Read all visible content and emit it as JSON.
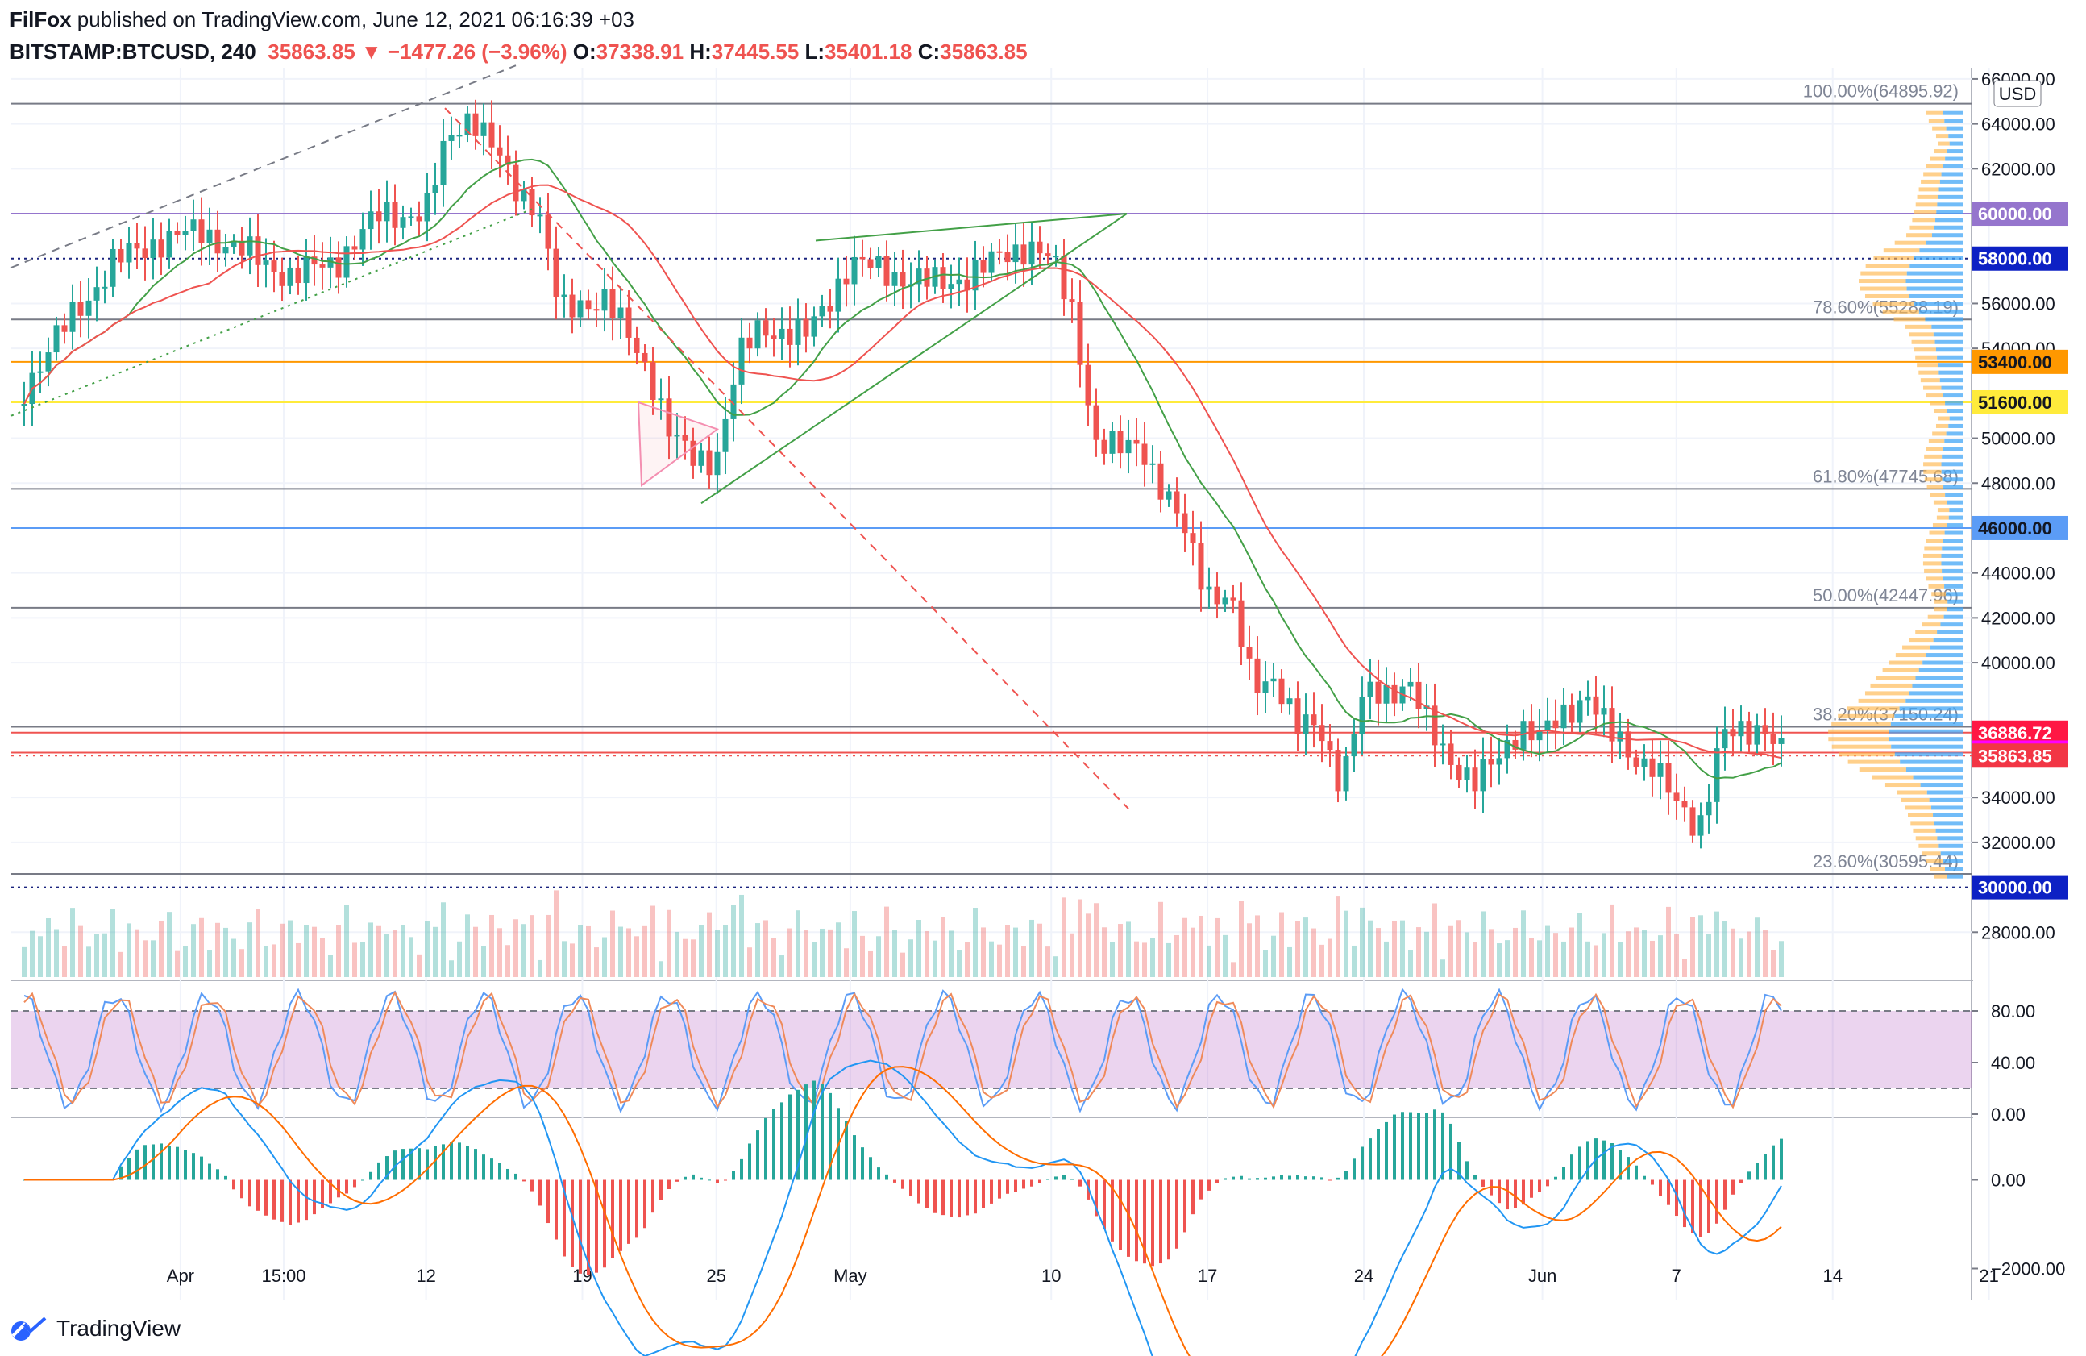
{
  "header": {
    "author": "FilFox",
    "published_text": " published on TradingView.com, June 12, 2021 06:16:39 +03",
    "symbol": "BITSTAMP:BTCUSD, 240",
    "last_price": "35863.85",
    "change": "−1477.26 (−3.96%)",
    "o_label": "O:",
    "o_value": "37338.91",
    "h_label": "H:",
    "h_value": "37445.55",
    "l_label": "L:",
    "l_value": "35401.18",
    "c_label": "C:",
    "c_value": "35863.85"
  },
  "footer": {
    "brand": "TradingView"
  },
  "colors": {
    "up": "#26a69a",
    "down": "#ef5350",
    "ema": "#ef5350",
    "sma": "#43a047",
    "purple_level": "#9575cd",
    "orange_level": "#ff9800",
    "yellow_level": "#ffeb3b",
    "blue_level": "#5b9cf6",
    "fib": "#787b86",
    "stoch_k": "#5b9cf6",
    "stoch_d": "#ef8a5a",
    "macd": "#2196f3",
    "signal": "#ff6d00"
  },
  "chart_data": [
    {
      "type": "candlestick",
      "title": "BITSTAMP:BTCUSD, 240",
      "currency": "USD",
      "x_tick_labels": [
        "Apr",
        "15:00",
        "12",
        "19",
        "25",
        "May",
        "10",
        "17",
        "24",
        "Jun",
        "7",
        "14",
        "21"
      ],
      "x_dates": [
        "2021-04-01",
        "2021-04-05 15:00",
        "2021-04-12",
        "2021-04-19",
        "2021-04-25",
        "2021-05-01",
        "2021-05-10",
        "2021-05-17",
        "2021-05-24",
        "2021-06-01",
        "2021-06-07",
        "2021-06-14",
        "2021-06-21"
      ],
      "y_tick_labels": [
        "66000.00",
        "64000.00",
        "62000.00",
        "56000.00",
        "54000.00",
        "50000.00",
        "48000.00",
        "44000.00",
        "42000.00",
        "40000.00",
        "34000.00",
        "32000.00",
        "28000.00"
      ],
      "y_ticks": [
        66000,
        64000,
        62000,
        56000,
        54000,
        50000,
        48000,
        44000,
        42000,
        40000,
        34000,
        32000,
        28000
      ],
      "ylim": [
        26000,
        66500
      ],
      "price_series": {
        "x": [
          "2021-03-25",
          "2021-03-27",
          "2021-03-29",
          "2021-03-31",
          "2021-04-02",
          "2021-04-04",
          "2021-04-06",
          "2021-04-08",
          "2021-04-10",
          "2021-04-12",
          "2021-04-13",
          "2021-04-14",
          "2021-04-15",
          "2021-04-16",
          "2021-04-17",
          "2021-04-18",
          "2021-04-19",
          "2021-04-20",
          "2021-04-22",
          "2021-04-23",
          "2021-04-24",
          "2021-04-25",
          "2021-04-26",
          "2021-04-27",
          "2021-04-29",
          "2021-05-01",
          "2021-05-03",
          "2021-05-05",
          "2021-05-07",
          "2021-05-09",
          "2021-05-10",
          "2021-05-11",
          "2021-05-12",
          "2021-05-13",
          "2021-05-14",
          "2021-05-15",
          "2021-05-16",
          "2021-05-17",
          "2021-05-18",
          "2021-05-19",
          "2021-05-20",
          "2021-05-21",
          "2021-05-22",
          "2021-05-23",
          "2021-05-24",
          "2021-05-25",
          "2021-05-26",
          "2021-05-27",
          "2021-05-28",
          "2021-05-29",
          "2021-05-30",
          "2021-05-31",
          "2021-06-01",
          "2021-06-02",
          "2021-06-03",
          "2021-06-04",
          "2021-06-05",
          "2021-06-06",
          "2021-06-07",
          "2021-06-08",
          "2021-06-09",
          "2021-06-10",
          "2021-06-11",
          "2021-06-12"
        ],
        "close": [
          52300,
          55200,
          57800,
          58800,
          59200,
          58200,
          57200,
          57900,
          60000,
          60000,
          63500,
          64500,
          62800,
          61200,
          60400,
          55500,
          56100,
          56200,
          53000,
          50000,
          49000,
          49200,
          53500,
          55000,
          54500,
          57800,
          57300,
          56800,
          57600,
          58700,
          57900,
          55500,
          49800,
          49400,
          49900,
          47600,
          45700,
          43300,
          42800,
          39000,
          39500,
          37000,
          37200,
          34700,
          38500,
          38700,
          39200,
          36800,
          35600,
          34700,
          35600,
          37300,
          36700,
          37600,
          38800,
          36800,
          35800,
          35600,
          33500,
          32600,
          36900,
          36600,
          37300,
          35863
        ]
      },
      "horizontal_levels": [
        {
          "label": "60000.00",
          "value": 60000
        },
        {
          "label": "58000.00",
          "value": 58000
        },
        {
          "label": "53400.00",
          "value": 53400
        },
        {
          "label": "51600.00",
          "value": 51600
        },
        {
          "label": "46000.00",
          "value": 46000
        },
        {
          "label": "36886.72",
          "value": 36886.72
        },
        {
          "label": "36000.00",
          "value": 36000
        },
        {
          "label": "35863.85",
          "value": 35863.85
        },
        {
          "label": "30000.00",
          "value": 30000
        }
      ],
      "fibonacci": [
        {
          "label": "100.00%(64895.92)",
          "value": 64895.92
        },
        {
          "label": "78.60%(55288.19)",
          "value": 55288.19
        },
        {
          "label": "61.80%(47745.68)",
          "value": 47745.68
        },
        {
          "label": "50.00%(42447.96)",
          "value": 42447.96
        },
        {
          "label": "38.20%(37150.24)",
          "value": 37150.24
        },
        {
          "label": "23.60%(30595.44)",
          "value": 30595.44
        }
      ]
    },
    {
      "type": "line",
      "title": "",
      "y_tick_labels": [
        "80.00",
        "40.00",
        "0.00"
      ],
      "y_ticks": [
        80,
        40,
        0
      ],
      "ylim": [
        0,
        100
      ],
      "band": [
        20,
        80
      ]
    },
    {
      "type": "line",
      "title": "",
      "y_tick_labels": [
        "0.00",
        "−2000.00"
      ],
      "y_ticks": [
        0,
        -2000
      ],
      "ylim": [
        -2700,
        1300
      ]
    }
  ]
}
